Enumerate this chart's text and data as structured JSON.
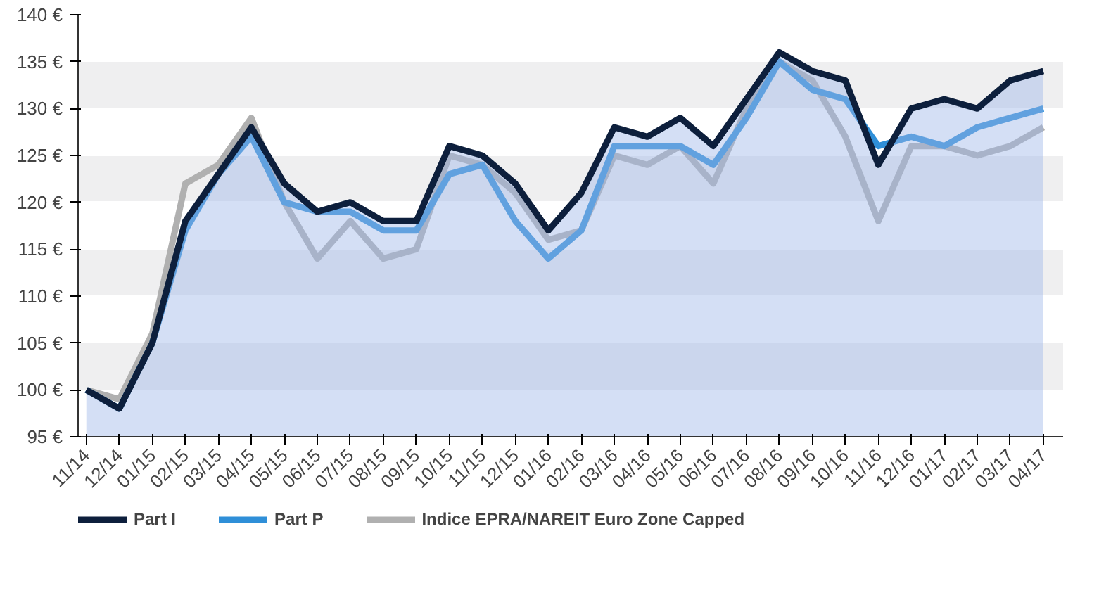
{
  "chart_data": {
    "type": "line",
    "categories": [
      "11/14",
      "12/14",
      "01/15",
      "02/15",
      "03/15",
      "04/15",
      "05/15",
      "06/15",
      "07/15",
      "08/15",
      "09/15",
      "10/15",
      "11/15",
      "12/15",
      "01/16",
      "02/16",
      "03/16",
      "04/16",
      "05/16",
      "06/16",
      "07/16",
      "08/16",
      "09/16",
      "10/16",
      "11/16",
      "12/16",
      "01/17",
      "02/17",
      "03/17",
      "04/17"
    ],
    "series": [
      {
        "name": "Part I",
        "type": "area",
        "color": "#0d1f3c",
        "values": [
          100,
          98,
          105,
          118,
          123,
          128,
          122,
          119,
          120,
          118,
          118,
          126,
          125,
          122,
          117,
          121,
          128,
          127,
          129,
          126,
          131,
          136,
          134,
          133,
          124,
          130,
          131,
          130,
          133,
          134
        ]
      },
      {
        "name": "Part P",
        "color": "#2f8fd8",
        "values": [
          100,
          98,
          105,
          117,
          123,
          127,
          120,
          119,
          119,
          117,
          117,
          123,
          124,
          118,
          114,
          117,
          126,
          126,
          126,
          124,
          129,
          135,
          132,
          131,
          126,
          127,
          126,
          128,
          129,
          130
        ]
      },
      {
        "name": "Indice EPRA/NAREIT Euro Zone Capped",
        "color": "#b0b0b0",
        "values": [
          100,
          99,
          106,
          122,
          124,
          129,
          120,
          114,
          118,
          114,
          115,
          125,
          124,
          121,
          116,
          117,
          125,
          124,
          126,
          122,
          130,
          135,
          133,
          127,
          118,
          126,
          126,
          125,
          126,
          128
        ]
      }
    ],
    "ylim": [
      95,
      140
    ],
    "yticks": [
      {
        "value": 95,
        "label": "95 €"
      },
      {
        "value": 100,
        "label": "100 €"
      },
      {
        "value": 105,
        "label": "105 €"
      },
      {
        "value": 110,
        "label": "110 €"
      },
      {
        "value": 115,
        "label": "115 €"
      },
      {
        "value": 120,
        "label": "120 €"
      },
      {
        "value": 125,
        "label": "125 €"
      },
      {
        "value": 130,
        "label": "130 €"
      },
      {
        "value": 135,
        "label": "135 €"
      },
      {
        "value": 140,
        "label": "140 €"
      }
    ],
    "grid": "y",
    "legend": "bottom",
    "line_style": "solid",
    "marker": "none"
  }
}
